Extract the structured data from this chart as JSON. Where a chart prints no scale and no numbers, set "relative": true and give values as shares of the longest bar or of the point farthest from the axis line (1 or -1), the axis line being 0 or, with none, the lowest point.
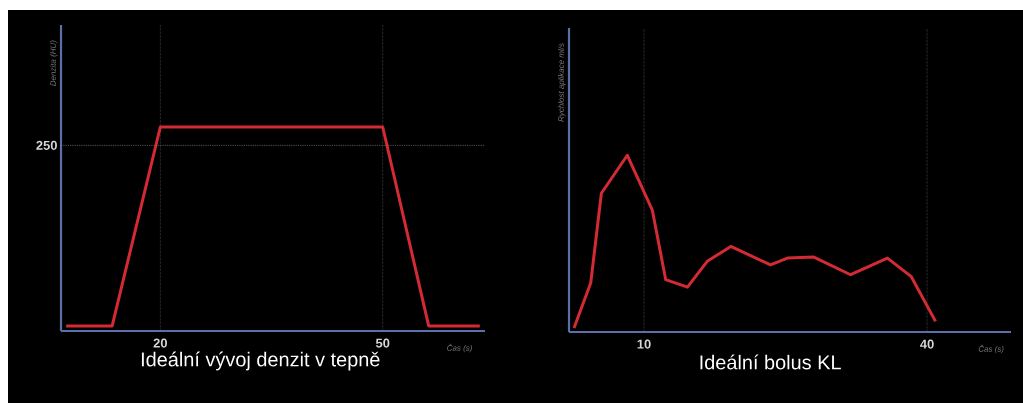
{
  "chart_data": [
    {
      "type": "line",
      "title": "Ideální vývoj denzit v tepně",
      "xlabel": "Čas (s)",
      "ylabel": "Denzita (HU)",
      "relative": true,
      "x": [
        7.3,
        13.5,
        20,
        50,
        56.2,
        63.1
      ],
      "series": [
        {
          "color": "#d42a34",
          "values": [
            0.025,
            0.025,
            1,
            1,
            0.025,
            0.025
          ]
        }
      ],
      "xlim": [
        6.6,
        63.8
      ],
      "xticks": [
        20,
        50
      ],
      "grid": "x",
      "ref_lines": [
        {
          "axis": "y",
          "value": 0.91
        }
      ],
      "annotations": [
        {
          "text": "250",
          "x": 6.6,
          "y": 0.91
        }
      ]
    },
    {
      "type": "line",
      "title": "Ideální bolus KL",
      "xlabel": "Čas (s)",
      "ylabel": "Rychlost aplikace ml/s",
      "relative": true,
      "x": [
        2.58,
        4.35,
        5.48,
        8.23,
        10.88,
        12.3,
        14.6,
        16.7,
        19.2,
        23.4,
        25.2,
        28.0,
        31.9,
        35.8,
        38.3,
        40.9
      ],
      "series": [
        {
          "color": "#d42a34",
          "values": [
            0.023,
            0.277,
            0.785,
            1,
            0.69,
            0.296,
            0.254,
            0.4,
            0.484,
            0.38,
            0.418,
            0.424,
            0.324,
            0.418,
            0.315,
            0.06
          ]
        }
      ],
      "xlim": [
        2.05,
        48.9
      ],
      "xticks": [
        10,
        40
      ],
      "grid": "x"
    }
  ]
}
